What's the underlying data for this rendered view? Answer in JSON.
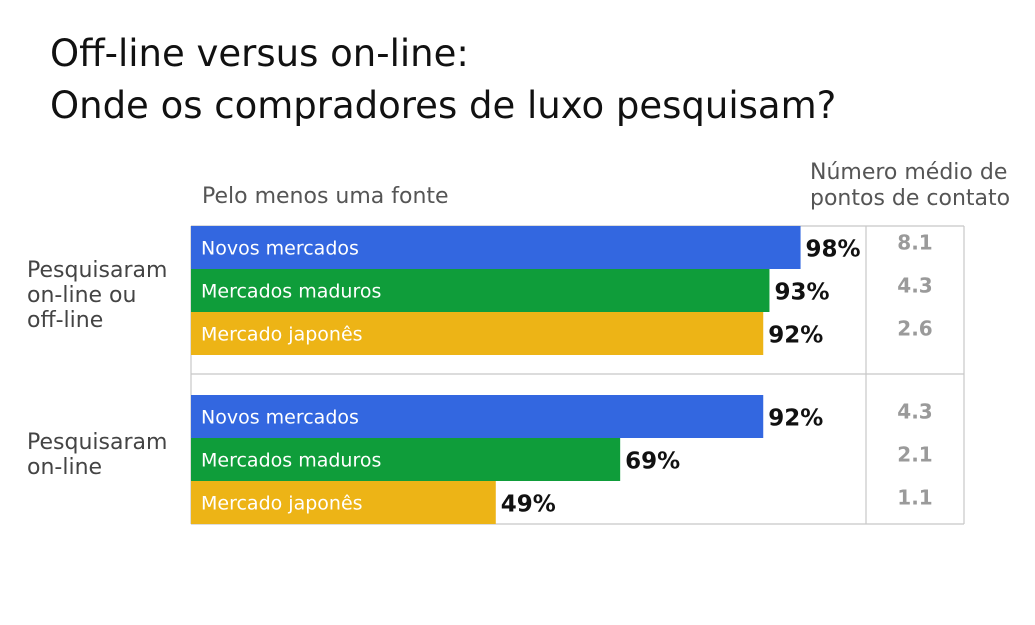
{
  "title_line1": "Off-line versus on-line:",
  "title_line2": "Onde os compradores de luxo pesquisam?",
  "subtitle": "Pelo menos uma fonte",
  "side_header_line1": "Número médio de",
  "side_header_line2": "pontos de contato",
  "colors": {
    "novos": "#3367e0",
    "maduros": "#0f9d3a",
    "japones": "#edb416",
    "value_text": "#111111",
    "touch_text": "#9a9a9a",
    "border": "#c8c8c8"
  },
  "chart_data": {
    "type": "bar",
    "orientation": "horizontal",
    "xlim": [
      0,
      100
    ],
    "unit": "%",
    "groups": [
      {
        "label_lines": [
          "Pesquisaram",
          "on-line ou",
          "off-line"
        ],
        "bars": [
          {
            "name": "Novos mercados",
            "value": 98,
            "value_label": "98%",
            "touchpoints": "8.1",
            "color_key": "novos"
          },
          {
            "name": "Mercados maduros",
            "value": 93,
            "value_label": "93%",
            "touchpoints": "4.3",
            "color_key": "maduros"
          },
          {
            "name": "Mercado japonês",
            "value": 92,
            "value_label": "92%",
            "touchpoints": "2.6",
            "color_key": "japones"
          }
        ]
      },
      {
        "label_lines": [
          "Pesquisaram",
          "on-line"
        ],
        "bars": [
          {
            "name": "Novos mercados",
            "value": 92,
            "value_label": "92%",
            "touchpoints": "4.3",
            "color_key": "novos"
          },
          {
            "name": "Mercados maduros",
            "value": 69,
            "value_label": "69%",
            "touchpoints": "2.1",
            "color_key": "maduros"
          },
          {
            "name": "Mercado japonês",
            "value": 49,
            "value_label": "49%",
            "touchpoints": "1.1",
            "color_key": "japones"
          }
        ]
      }
    ]
  }
}
